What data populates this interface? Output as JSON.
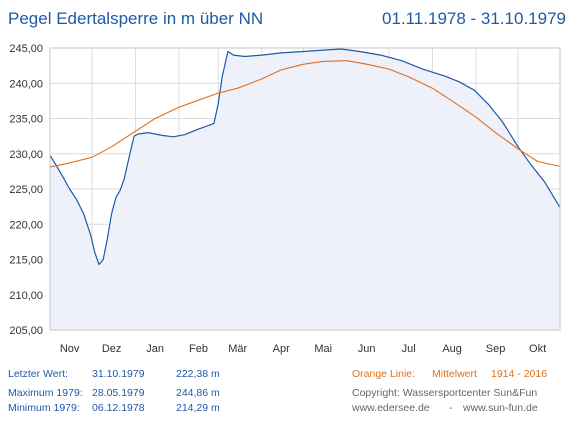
{
  "title": "Pegel Edertalsperre in m über NN",
  "date_range": "01.11.1978 - 31.10.1979",
  "colors": {
    "title": "#1f5aa6",
    "level_line": "#1f5aa6",
    "mean_line": "#e0701a",
    "area_fill": "#eef0fa",
    "grid": "#dcdcdc",
    "info_text": "#1f5aa6",
    "copyright_text": "#666666"
  },
  "chart_data": {
    "type": "line",
    "title": "Pegel Edertalsperre in m über NN",
    "xlabel": "",
    "ylabel": "",
    "ylim": [
      205,
      245
    ],
    "ytick_labels": [
      "205,00",
      "210,00",
      "215,00",
      "220,00",
      "225,00",
      "230,00",
      "235,00",
      "240,00",
      "245,00"
    ],
    "xlim": [
      "1978-11-01",
      "1979-10-31"
    ],
    "x_tick_labels": [
      "Nov",
      "Dez",
      "Jan",
      "Feb",
      "Mär",
      "Apr",
      "Mai",
      "Jun",
      "Jul",
      "Aug",
      "Sep",
      "Okt"
    ],
    "grid": true,
    "series": [
      {
        "name": "",
        "color": "#1f5aa6",
        "filled": true,
        "x": [
          "1978-11-01",
          "1978-11-05",
          "1978-11-10",
          "1978-11-15",
          "1978-11-20",
          "1978-11-25",
          "1978-11-30",
          "1978-12-03",
          "1978-12-06",
          "1978-12-09",
          "1978-12-12",
          "1978-12-15",
          "1978-12-18",
          "1978-12-21",
          "1978-12-24",
          "1978-12-28",
          "1978-12-31",
          "1979-01-03",
          "1979-01-10",
          "1979-01-20",
          "1979-01-28",
          "1979-02-05",
          "1979-02-15",
          "1979-02-22",
          "1979-02-26",
          "1979-03-01",
          "1979-03-04",
          "1979-03-08",
          "1979-03-12",
          "1979-03-20",
          "1979-04-01",
          "1979-04-15",
          "1979-05-01",
          "1979-05-15",
          "1979-05-28",
          "1979-06-10",
          "1979-06-25",
          "1979-07-10",
          "1979-07-25",
          "1979-08-10",
          "1979-08-20",
          "1979-08-31",
          "1979-09-10",
          "1979-09-20",
          "1979-10-01",
          "1979-10-10",
          "1979-10-20",
          "1979-10-31"
        ],
        "y": [
          229.8,
          228.5,
          226.8,
          225.0,
          223.5,
          221.5,
          218.5,
          216.0,
          214.29,
          215.0,
          218.0,
          221.5,
          223.8,
          224.8,
          226.5,
          230.0,
          232.5,
          232.8,
          233.0,
          232.6,
          232.4,
          232.7,
          233.5,
          234.0,
          234.3,
          237.0,
          241.0,
          244.5,
          244.0,
          243.8,
          244.0,
          244.3,
          244.5,
          244.7,
          244.86,
          244.5,
          244.0,
          243.2,
          242.0,
          241.0,
          240.2,
          239.0,
          237.0,
          234.5,
          231.0,
          228.5,
          226.0,
          222.38
        ]
      },
      {
        "name": "Mittelwert",
        "color": "#e0701a",
        "filled": false,
        "x": [
          "1978-11-01",
          "1978-11-15",
          "1978-12-01",
          "1978-12-15",
          "1979-01-01",
          "1979-01-15",
          "1979-02-01",
          "1979-02-15",
          "1979-03-01",
          "1979-03-15",
          "1979-04-01",
          "1979-04-15",
          "1979-05-01",
          "1979-05-15",
          "1979-06-01",
          "1979-06-15",
          "1979-07-01",
          "1979-07-15",
          "1979-08-01",
          "1979-08-15",
          "1979-09-01",
          "1979-09-15",
          "1979-10-01",
          "1979-10-15",
          "1979-10-31"
        ],
        "y": [
          228.1,
          228.7,
          229.5,
          231.0,
          233.2,
          235.0,
          236.6,
          237.6,
          238.6,
          239.3,
          240.6,
          241.9,
          242.7,
          243.1,
          243.2,
          242.7,
          242.0,
          240.9,
          239.3,
          237.5,
          235.2,
          233.0,
          230.7,
          228.9,
          228.2
        ]
      }
    ]
  },
  "info": {
    "last_value_label": "Letzter Wert:",
    "last_value_date": "31.10.1979",
    "last_value_value": "222,38 m",
    "maximum_label": "Maximum 1979:",
    "maximum_date": "28.05.1979",
    "maximum_value": "244,86 m",
    "minimum_label": "Minimum  1979:",
    "minimum_date": "06.12.1978",
    "minimum_value": "214,29 m",
    "orange_line_label": "Orange Linie:",
    "mean_label": "Mittelwert",
    "mean_period": "1914 - 2016",
    "copyright": "Copyright: Wassersportcenter Sun&Fun",
    "website_1": "www.edersee.de",
    "website_sep": "-",
    "website_2": "www.sun-fun.de"
  }
}
